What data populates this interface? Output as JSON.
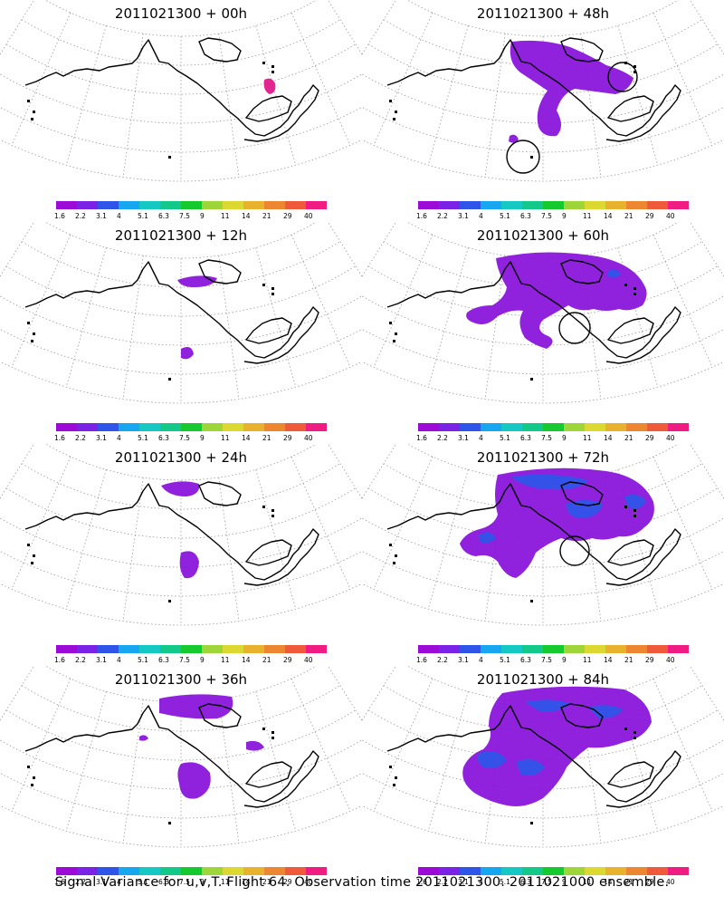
{
  "colorbar": {
    "colors": [
      "#9c0ad8",
      "#7a22e6",
      "#2f55e8",
      "#17a6f0",
      "#16c8c4",
      "#12c98a",
      "#16c92e",
      "#9ed63a",
      "#dcd832",
      "#e8b22e",
      "#ec8630",
      "#ef5a3a",
      "#f01c82"
    ],
    "labels": [
      "1.6",
      "2.2",
      "3.1",
      "4",
      "5.1",
      "6.3",
      "7.5",
      "9",
      "11",
      "14",
      "21",
      "29",
      "40"
    ]
  },
  "panels": [
    {
      "title": "2011021300 + 00h"
    },
    {
      "title": "2011021300 + 48h"
    },
    {
      "title": "2011021300 + 12h"
    },
    {
      "title": "2011021300 + 60h"
    },
    {
      "title": "2011021300 + 24h"
    },
    {
      "title": "2011021300 + 72h"
    },
    {
      "title": "2011021300 + 36h"
    },
    {
      "title": "2011021300 + 84h"
    }
  ],
  "footer": "Signal Variance for u,v,T. Flight 64. Observation time 2011021300. 2011021000 ensemble."
}
